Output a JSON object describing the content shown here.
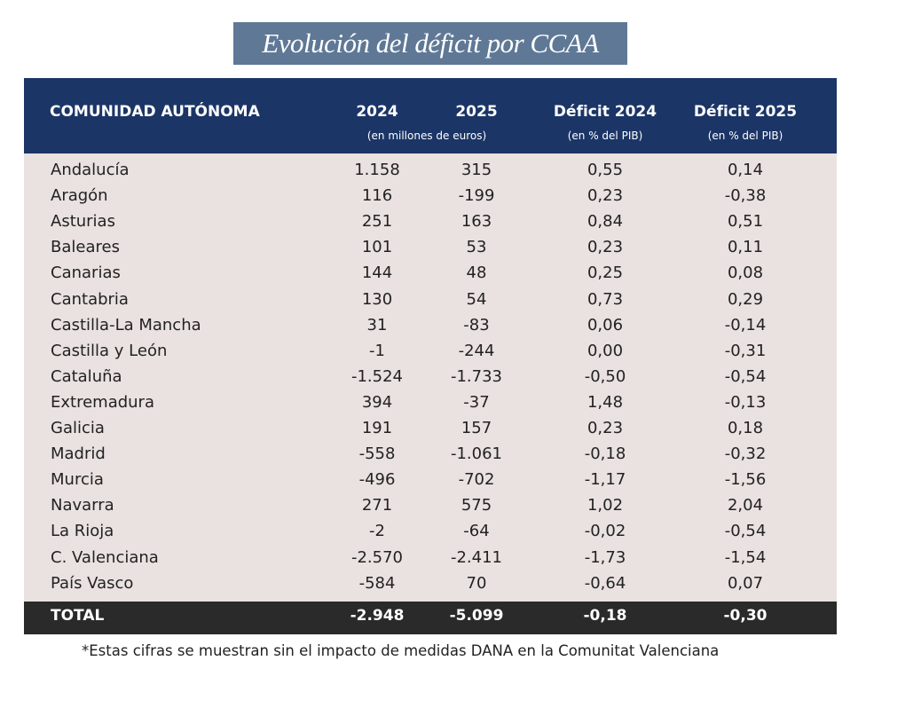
{
  "title": "Evolución del déficit por CCAA",
  "table": {
    "header": {
      "name": "COMUNIDAD AUTÓNOMA",
      "col_2024": "2024",
      "col_2025": "2025",
      "euros_note": "(en millones de euros)",
      "deficit_2024": "Déficit 2024",
      "deficit_2024_note": "(en % del PIB)",
      "deficit_2025": "Déficit 2025",
      "deficit_2025_note": "(en % del PIB)"
    },
    "rows": [
      [
        "Andalucía",
        "1.158",
        "315",
        "0,55",
        "0,14"
      ],
      [
        "Aragón",
        "116",
        "-199",
        "0,23",
        "-0,38"
      ],
      [
        "Asturias",
        "251",
        "163",
        "0,84",
        "0,51"
      ],
      [
        "Baleares",
        "101",
        "53",
        "0,23",
        "0,11"
      ],
      [
        "Canarias",
        "144",
        "48",
        "0,25",
        "0,08"
      ],
      [
        "Cantabria",
        "130",
        "54",
        "0,73",
        "0,29"
      ],
      [
        "Castilla-La Mancha",
        "31",
        "-83",
        "0,06",
        "-0,14"
      ],
      [
        "Castilla y León",
        "-1",
        "-244",
        "0,00",
        "-0,31"
      ],
      [
        "Cataluña",
        "-1.524",
        "-1.733",
        "-0,50",
        "-0,54"
      ],
      [
        "Extremadura",
        "394",
        "-37",
        "1,48",
        "-0,13"
      ],
      [
        "Galicia",
        "191",
        "157",
        "0,23",
        "0,18"
      ],
      [
        "Madrid",
        "-558",
        "-1.061",
        "-0,18",
        "-0,32"
      ],
      [
        "Murcia",
        "-496",
        "-702",
        "-1,17",
        "-1,56"
      ],
      [
        "Navarra",
        "271",
        "575",
        "1,02",
        "2,04"
      ],
      [
        "La Rioja",
        "-2",
        "-64",
        "-0,02",
        "-0,54"
      ],
      [
        "C. Valenciana",
        "-2.570",
        "-2.411",
        "-1,73",
        "-1,54"
      ],
      [
        "País Vasco",
        "-584",
        "70",
        "-0,64",
        "0,07"
      ]
    ],
    "total": [
      "TOTAL",
      "-2.948",
      "-5.099",
      "-0,18",
      "-0,30"
    ]
  },
  "footnote": "*Estas cifras se muestran sin el impacto de medidas DANA en la Comunitat Valenciana"
}
